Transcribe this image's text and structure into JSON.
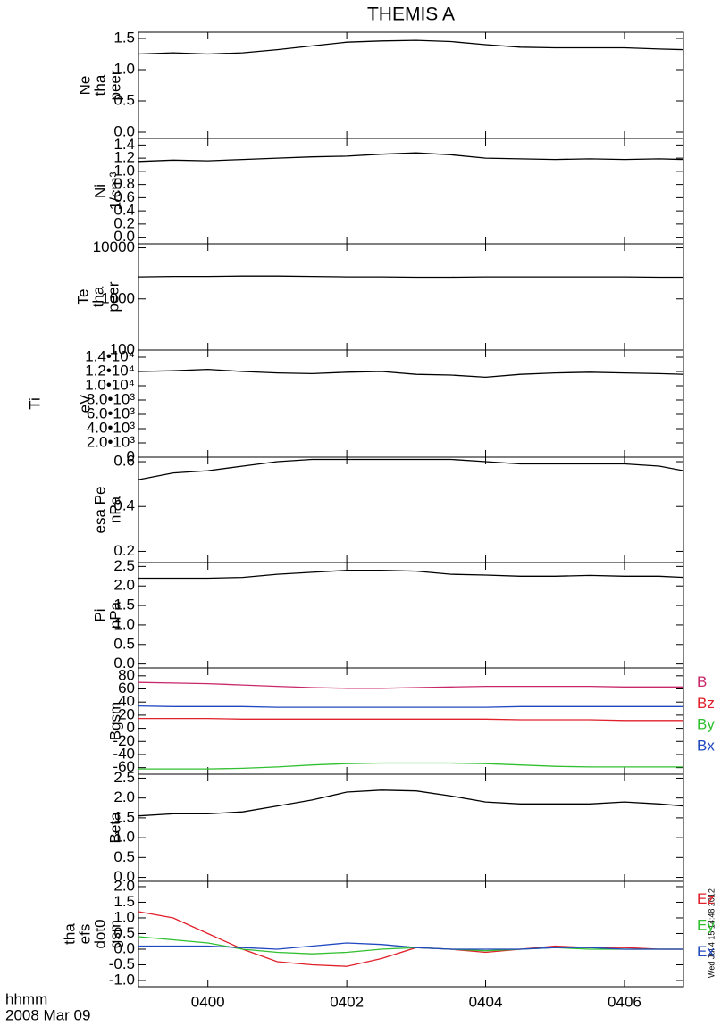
{
  "title": "THEMIS A",
  "x_label": [
    "hhmm",
    "2008 Mar 09"
  ],
  "timestamp": "Wed Jul  4 15:14:48 2012",
  "chart_data": [
    {
      "type": "line",
      "ylabel": [
        "Ne",
        "tha",
        "peer"
      ],
      "x": [
        239,
        239.5,
        240,
        240.5,
        241,
        241.5,
        242,
        242.5,
        243,
        243.5,
        244,
        244.5,
        245,
        245.5,
        246,
        246.5,
        246.85
      ],
      "values": [
        1.25,
        1.27,
        1.25,
        1.27,
        1.32,
        1.38,
        1.44,
        1.46,
        1.47,
        1.45,
        1.4,
        1.36,
        1.35,
        1.35,
        1.35,
        1.33,
        1.32
      ],
      "color": "#000000",
      "xlim": [
        239,
        246.85
      ],
      "ylim": [
        -0.1,
        1.6
      ],
      "yticks": [
        {
          "value": 0,
          "label": "0.0"
        },
        0.5,
        {
          "value": 1,
          "label": "1.0"
        },
        1.5
      ]
    },
    {
      "type": "line",
      "ylabel": [
        "Ni",
        "1/cm³"
      ],
      "x": [
        239,
        239.5,
        240,
        240.5,
        241,
        241.5,
        242,
        242.5,
        243,
        243.5,
        244,
        244.5,
        245,
        245.5,
        246,
        246.5,
        246.85
      ],
      "values": [
        1.15,
        1.17,
        1.16,
        1.18,
        1.2,
        1.22,
        1.23,
        1.26,
        1.28,
        1.25,
        1.2,
        1.19,
        1.18,
        1.19,
        1.18,
        1.19,
        1.18
      ],
      "color": "#000000",
      "xlim": [
        239,
        246.85
      ],
      "ylim": [
        -0.1,
        1.5
      ],
      "yticks": [
        {
          "value": 0,
          "label": "0.0"
        },
        0.2,
        0.4,
        0.6,
        0.8,
        {
          "value": 1,
          "label": "1.0"
        },
        1.2,
        1.4
      ]
    },
    {
      "type": "line",
      "ylabel": [
        "Te",
        "tha",
        "peer"
      ],
      "log": true,
      "x": [
        239,
        239.5,
        240,
        240.5,
        241,
        241.5,
        242,
        242.5,
        243,
        243.5,
        244,
        244.5,
        245,
        245.5,
        246,
        246.5,
        246.85
      ],
      "values": [
        2700,
        2750,
        2750,
        2800,
        2800,
        2750,
        2700,
        2700,
        2650,
        2650,
        2700,
        2700,
        2700,
        2700,
        2700,
        2650,
        2650
      ],
      "color": "#000000",
      "xlim": [
        239,
        246.85
      ],
      "ylim": [
        100,
        12000
      ],
      "yticks": [
        100,
        1000,
        10000
      ]
    },
    {
      "type": "line",
      "ylabel": [
        "Ti",
        "eV"
      ],
      "x": [
        239,
        239.5,
        240,
        240.5,
        241,
        241.5,
        242,
        242.5,
        243,
        243.5,
        244,
        244.5,
        245,
        245.5,
        246,
        246.5,
        246.85
      ],
      "values": [
        12000,
        12100,
        12300,
        12000,
        11800,
        11700,
        11900,
        12000,
        11600,
        11500,
        11200,
        11600,
        11800,
        11900,
        11800,
        11700,
        11600
      ],
      "color": "#000000",
      "xlim": [
        239,
        246.85
      ],
      "ylim": [
        0,
        15000
      ],
      "yticks": [
        0,
        {
          "value": 2000,
          "label": "2.0•10³"
        },
        {
          "value": 4000,
          "label": "4.0•10³"
        },
        {
          "value": 6000,
          "label": "6.0•10³"
        },
        {
          "value": 8000,
          "label": "8.0•10³"
        },
        {
          "value": 10000,
          "label": "1.0•10⁴"
        },
        {
          "value": 12000,
          "label": "1.2•10⁴"
        },
        {
          "value": 14000,
          "label": "1.4•10⁴"
        }
      ]
    },
    {
      "type": "line",
      "ylabel": [
        "esa Pe",
        "nPa"
      ],
      "x": [
        239,
        239.5,
        240,
        240.5,
        241,
        241.5,
        242,
        242.5,
        243,
        243.5,
        244,
        244.5,
        245,
        245.5,
        246,
        246.5,
        246.85
      ],
      "values": [
        0.52,
        0.55,
        0.56,
        0.58,
        0.6,
        0.61,
        0.61,
        0.61,
        0.61,
        0.61,
        0.6,
        0.59,
        0.59,
        0.59,
        0.59,
        0.58,
        0.56
      ],
      "color": "#000000",
      "xlim": [
        239,
        246.85
      ],
      "ylim": [
        0.15,
        0.62
      ],
      "yticks": [
        0.2,
        0.4,
        0.6
      ]
    },
    {
      "type": "line",
      "ylabel": [
        "Pi",
        "nPa"
      ],
      "x": [
        239,
        239.5,
        240,
        240.5,
        241,
        241.5,
        242,
        242.5,
        243,
        243.5,
        244,
        244.5,
        245,
        245.5,
        246,
        246.5,
        246.85
      ],
      "values": [
        2.2,
        2.2,
        2.2,
        2.22,
        2.3,
        2.35,
        2.4,
        2.4,
        2.38,
        2.3,
        2.28,
        2.25,
        2.25,
        2.27,
        2.25,
        2.25,
        2.22
      ],
      "color": "#000000",
      "xlim": [
        239,
        246.85
      ],
      "ylim": [
        -0.1,
        2.6
      ],
      "yticks": [
        {
          "value": 0,
          "label": "0.0"
        },
        0.5,
        {
          "value": 1,
          "label": "1.0"
        },
        1.5,
        {
          "value": 2,
          "label": "2.0"
        },
        2.5
      ]
    },
    {
      "type": "line",
      "ylabel": [
        "Bgsm"
      ],
      "x": [
        239,
        239.5,
        240,
        240.5,
        241,
        241.5,
        242,
        242.5,
        243,
        243.5,
        244,
        244.5,
        245,
        245.5,
        246,
        246.5,
        246.85
      ],
      "series": [
        {
          "name": "B",
          "color": "#c8286a",
          "values": [
            70,
            69,
            68,
            66,
            64,
            62,
            61,
            61,
            62,
            63,
            64,
            64,
            64,
            64,
            63,
            63,
            63
          ]
        },
        {
          "name": "Bz",
          "color": "#e0202a",
          "values": [
            15,
            15,
            15,
            14,
            14,
            14,
            14,
            14,
            14,
            14,
            14,
            13,
            13,
            13,
            12,
            12,
            12
          ]
        },
        {
          "name": "By",
          "color": "#30c030",
          "values": [
            -62,
            -62,
            -62,
            -61,
            -59,
            -56,
            -54,
            -53,
            -53,
            -53,
            -54,
            -56,
            -58,
            -59,
            -59,
            -59,
            -59
          ]
        },
        {
          "name": "Bx",
          "color": "#2048c0",
          "values": [
            34,
            33,
            33,
            33,
            32,
            32,
            32,
            32,
            32,
            32,
            32,
            33,
            33,
            33,
            33,
            33,
            33
          ]
        }
      ],
      "xlim": [
        239,
        246.85
      ],
      "ylim": [
        -70,
        92
      ],
      "yticks": [
        -60,
        -40,
        -20,
        0,
        20,
        40,
        60,
        80
      ]
    },
    {
      "type": "line",
      "ylabel": [
        "Beta"
      ],
      "x": [
        239,
        239.5,
        240,
        240.5,
        241,
        241.5,
        242,
        242.5,
        243,
        243.5,
        244,
        244.5,
        245,
        245.5,
        246,
        246.5,
        246.85
      ],
      "values": [
        1.55,
        1.6,
        1.6,
        1.65,
        1.8,
        1.95,
        2.15,
        2.2,
        2.18,
        2.05,
        1.9,
        1.85,
        1.85,
        1.85,
        1.9,
        1.85,
        1.8
      ],
      "color": "#000000",
      "xlim": [
        239,
        246.85
      ],
      "ylim": [
        -0.1,
        2.6
      ],
      "yticks": [
        {
          "value": 0,
          "label": "0.0"
        },
        0.5,
        {
          "value": 1,
          "label": "1.0"
        },
        1.5,
        {
          "value": 2,
          "label": "2.0"
        },
        2.5
      ]
    },
    {
      "type": "line",
      "ylabel": [
        "tha",
        "efs",
        "dot0",
        "gsm"
      ],
      "x": [
        239,
        239.5,
        240,
        240.5,
        241,
        241.5,
        242,
        242.5,
        243,
        243.5,
        244,
        244.5,
        245,
        245.5,
        246,
        246.5,
        246.85
      ],
      "series": [
        {
          "name": "Ez",
          "color": "#e0202a",
          "values": [
            1.2,
            1.0,
            0.5,
            0.0,
            -0.4,
            -0.5,
            -0.55,
            -0.3,
            0.05,
            0.0,
            -0.1,
            0.0,
            0.1,
            0.05,
            0.05,
            0.0,
            0.0
          ]
        },
        {
          "name": "Ey",
          "color": "#30c030",
          "values": [
            0.4,
            0.3,
            0.2,
            0.0,
            -0.1,
            -0.15,
            -0.1,
            0.0,
            0.05,
            0.0,
            -0.05,
            0.0,
            0.05,
            0.0,
            0.0,
            0.0,
            0.0
          ]
        },
        {
          "name": "Ex",
          "color": "#2048c0",
          "values": [
            0.1,
            0.1,
            0.1,
            0.05,
            0.0,
            0.1,
            0.2,
            0.15,
            0.05,
            0.0,
            0.0,
            0.0,
            0.05,
            0.05,
            0.0,
            0.0,
            0.0
          ]
        }
      ],
      "xlim": [
        239,
        246.85
      ],
      "ylim": [
        -1.2,
        2.17
      ],
      "yticks": [
        {
          "value": -1,
          "label": "-1.0"
        },
        -0.5,
        {
          "value": 0,
          "label": "0.0"
        },
        0.5,
        {
          "value": 1,
          "label": "1.0"
        },
        1.5,
        {
          "value": 2,
          "label": "2.0"
        }
      ],
      "xticks": [
        {
          "value": 240,
          "label": "0400"
        },
        {
          "value": 242,
          "label": "0402"
        },
        {
          "value": 244,
          "label": "0404"
        },
        {
          "value": 246,
          "label": "0406"
        }
      ]
    }
  ]
}
